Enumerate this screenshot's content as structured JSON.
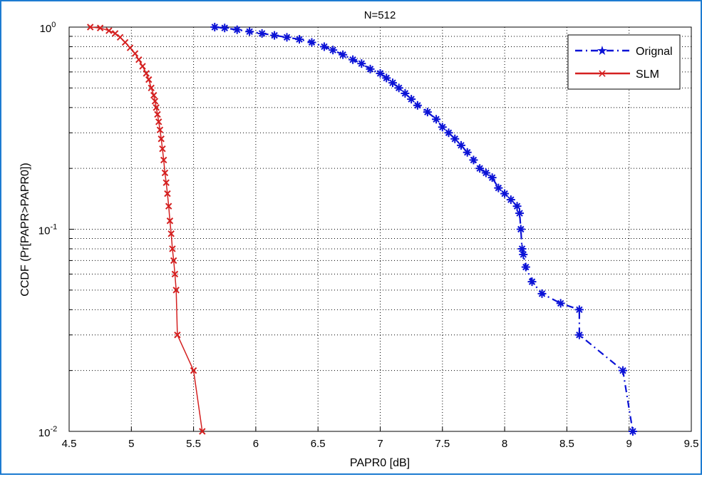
{
  "chart_data": {
    "type": "line",
    "title": "N=512",
    "xlabel": "PAPR0 [dB]",
    "ylabel": "CCDF (Pr[PAPR>PAPR0])",
    "xlim": [
      4.5,
      9.5
    ],
    "ylim": [
      0.01,
      1
    ],
    "yscale": "log",
    "grid": true,
    "legend_position": "top-right",
    "x_ticks": [
      "4.5",
      "5",
      "5.5",
      "6",
      "6.5",
      "7",
      "7.5",
      "8",
      "8.5",
      "9",
      "9.5"
    ],
    "y_ticks": [
      {
        "base": "10",
        "exp": "-2",
        "value": 0.01
      },
      {
        "base": "10",
        "exp": "-1",
        "value": 0.1
      },
      {
        "base": "10",
        "exp": "0",
        "value": 1
      }
    ],
    "series": [
      {
        "name": "Orignal",
        "color": "#0b12d6",
        "line_style": "dash-dot",
        "marker": "star",
        "x": [
          5.67,
          5.75,
          5.85,
          5.95,
          6.05,
          6.15,
          6.25,
          6.35,
          6.45,
          6.55,
          6.62,
          6.7,
          6.78,
          6.85,
          6.92,
          7.0,
          7.05,
          7.1,
          7.15,
          7.2,
          7.25,
          7.3,
          7.38,
          7.45,
          7.5,
          7.55,
          7.6,
          7.65,
          7.7,
          7.75,
          7.8,
          7.85,
          7.9,
          7.95,
          8.0,
          8.05,
          8.1,
          8.12,
          8.13,
          8.14,
          8.15,
          8.17,
          8.22,
          8.3,
          8.45,
          8.6,
          8.6,
          8.95,
          9.03
        ],
        "y": [
          1.0,
          0.99,
          0.97,
          0.95,
          0.93,
          0.91,
          0.89,
          0.87,
          0.84,
          0.8,
          0.77,
          0.73,
          0.69,
          0.66,
          0.62,
          0.59,
          0.56,
          0.53,
          0.5,
          0.47,
          0.44,
          0.41,
          0.38,
          0.35,
          0.32,
          0.3,
          0.28,
          0.26,
          0.24,
          0.22,
          0.2,
          0.19,
          0.18,
          0.16,
          0.15,
          0.14,
          0.13,
          0.12,
          0.1,
          0.08,
          0.075,
          0.065,
          0.055,
          0.048,
          0.043,
          0.04,
          0.03,
          0.02,
          0.01
        ]
      },
      {
        "name": "SLM",
        "color": "#d42020",
        "line_style": "solid",
        "marker": "x",
        "x": [
          4.67,
          4.75,
          4.82,
          4.87,
          4.91,
          4.95,
          4.99,
          5.03,
          5.06,
          5.09,
          5.12,
          5.14,
          5.16,
          5.18,
          5.19,
          5.2,
          5.21,
          5.22,
          5.23,
          5.24,
          5.25,
          5.26,
          5.27,
          5.28,
          5.29,
          5.3,
          5.31,
          5.32,
          5.33,
          5.34,
          5.35,
          5.36,
          5.37,
          5.5,
          5.57
        ],
        "y": [
          1.0,
          0.99,
          0.96,
          0.93,
          0.89,
          0.84,
          0.79,
          0.74,
          0.69,
          0.64,
          0.59,
          0.55,
          0.5,
          0.46,
          0.43,
          0.4,
          0.37,
          0.34,
          0.31,
          0.28,
          0.25,
          0.22,
          0.19,
          0.17,
          0.15,
          0.13,
          0.11,
          0.095,
          0.08,
          0.07,
          0.06,
          0.05,
          0.03,
          0.02,
          0.01
        ]
      }
    ]
  }
}
